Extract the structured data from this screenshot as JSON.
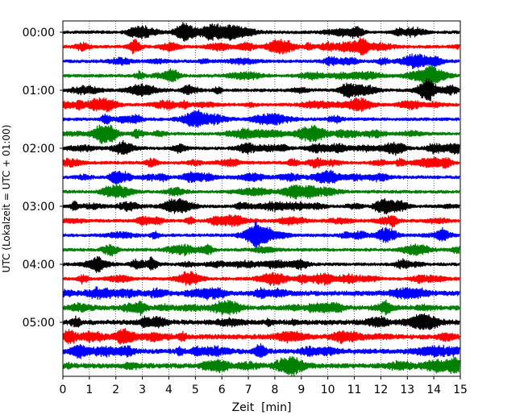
{
  "chart_data": {
    "type": "line",
    "title": "",
    "xlabel": "Zeit  [min]",
    "ylabel": "UTC (Lokalzeit = UTC + 01:00)",
    "xlim": [
      0,
      15
    ],
    "x_ticks": [
      "0",
      "1",
      "2",
      "3",
      "4",
      "5",
      "6",
      "7",
      "8",
      "9",
      "10",
      "11",
      "12",
      "13",
      "14",
      "15"
    ],
    "y_ticks": [
      "00:00",
      "01:00",
      "02:00",
      "03:00",
      "04:00",
      "05:00"
    ],
    "trace_interval_minutes": 15,
    "trace_start": "00:00",
    "trace_count": 24,
    "trace_colors": [
      "#000000",
      "#ff0000",
      "#0000ff",
      "#008000"
    ],
    "vertical_grid": "dotted, every 1 min",
    "legend": "none"
  }
}
